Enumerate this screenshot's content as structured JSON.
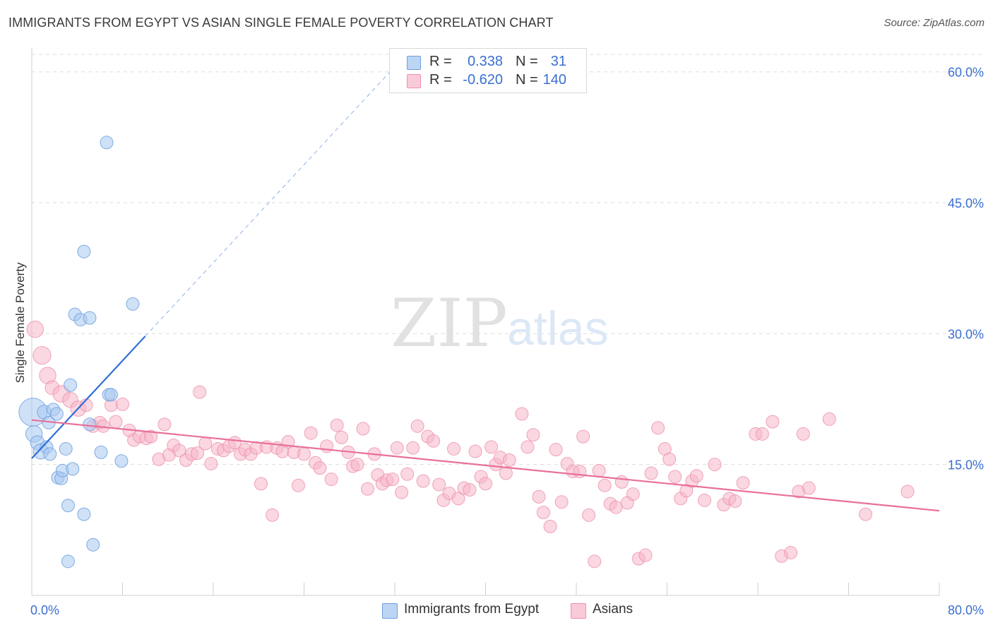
{
  "title": "IMMIGRANTS FROM EGYPT VS ASIAN SINGLE FEMALE POVERTY CORRELATION CHART",
  "source": "Source: ZipAtlas.com",
  "watermark": {
    "part1": "ZIP",
    "part2": "atlas"
  },
  "legend_box": [
    {
      "r_label": "R =",
      "r_value": "0.338",
      "n_label": "N =",
      "n_value": "31"
    },
    {
      "r_label": "R =",
      "r_value": "-0.620",
      "n_label": "N =",
      "n_value": "140"
    }
  ],
  "bottom_legend": [
    "Immigrants from Egypt",
    "Asians"
  ],
  "colors": {
    "egypt_fill": "#a8c8f0",
    "egypt_stroke": "#6f9fde",
    "egypt_line": "#2f6fd6",
    "asian_fill": "#f6b6c8",
    "asian_stroke": "#ee8faa",
    "asian_line": "#e8709a",
    "tick_text": "#3a6fd0",
    "grid": "#dddddd"
  },
  "chart_data": {
    "type": "scatter",
    "title": "IMMIGRANTS FROM EGYPT VS ASIAN SINGLE FEMALE POVERTY CORRELATION CHART",
    "xlabel": "",
    "ylabel": "Single Female Poverty",
    "xlim": [
      0,
      80
    ],
    "ylim": [
      0,
      62
    ],
    "x_tick_labels": [
      "0.0%",
      "80.0%"
    ],
    "y_ticks": [
      15,
      30,
      45,
      60
    ],
    "y_tick_labels": [
      "15.0%",
      "30.0%",
      "45.0%",
      "60.0%"
    ],
    "grid": "horizontal dashed",
    "legend_position": "top-center",
    "series": [
      {
        "name": "Immigrants from Egypt",
        "R": 0.338,
        "N": 31,
        "trend": {
          "x0": 0,
          "y0": 15.7,
          "x1": 10,
          "y1": 29.7,
          "dashed_to_x": 32,
          "dashed_to_y": 60.6
        },
        "points": [
          [
            0.1,
            21.0,
            2.2
          ],
          [
            0.2,
            18.5,
            1.3
          ],
          [
            0.5,
            17.5,
            1.1
          ],
          [
            0.8,
            16.5,
            1.2
          ],
          [
            1.1,
            21.0,
            1.1
          ],
          [
            1.3,
            17.0,
            1.0
          ],
          [
            1.5,
            19.8,
            1.0
          ],
          [
            1.6,
            16.2,
            1.0
          ],
          [
            1.9,
            21.3,
            1.0
          ],
          [
            2.2,
            20.8,
            1.0
          ],
          [
            2.3,
            13.5,
            1.0
          ],
          [
            2.6,
            13.4,
            1.0
          ],
          [
            2.7,
            14.3,
            1.0
          ],
          [
            3.2,
            10.3,
            1.0
          ],
          [
            3.2,
            3.9,
            1.0
          ],
          [
            3.4,
            24.1,
            1.0
          ],
          [
            3.6,
            14.5,
            1.0
          ],
          [
            3.8,
            32.2,
            1.0
          ],
          [
            4.3,
            31.6,
            1.0
          ],
          [
            4.6,
            9.3,
            1.0
          ],
          [
            4.6,
            39.4,
            1.0
          ],
          [
            5.1,
            31.8,
            1.0
          ],
          [
            5.1,
            19.6,
            1.0
          ],
          [
            5.4,
            5.8,
            1.0
          ],
          [
            6.1,
            16.4,
            1.0
          ],
          [
            6.6,
            51.9,
            1.0
          ],
          [
            6.8,
            23.0,
            1.0
          ],
          [
            7.0,
            23.0,
            1.0
          ],
          [
            7.9,
            15.4,
            1.0
          ],
          [
            8.9,
            33.4,
            1.0
          ],
          [
            3.0,
            16.8,
            1.0
          ]
        ]
      },
      {
        "name": "Asians",
        "R": -0.62,
        "N": 140,
        "trend": {
          "x0": 0,
          "y0": 20.1,
          "x1": 80,
          "y1": 9.7
        },
        "points": [
          [
            0.3,
            30.5,
            1.3
          ],
          [
            0.9,
            27.5,
            1.4
          ],
          [
            1.4,
            25.2,
            1.3
          ],
          [
            1.8,
            23.8,
            1.1
          ],
          [
            2.6,
            23.1,
            1.3
          ],
          [
            3.4,
            22.4,
            1.2
          ],
          [
            4.1,
            21.4,
            1.2
          ],
          [
            4.8,
            21.8,
            1.0
          ],
          [
            5.4,
            19.4,
            1.0
          ],
          [
            6.0,
            19.8,
            1.0
          ],
          [
            6.3,
            19.4,
            1.0
          ],
          [
            7.0,
            21.8,
            1.0
          ],
          [
            7.4,
            19.9,
            1.0
          ],
          [
            8.0,
            21.9,
            1.0
          ],
          [
            8.6,
            18.9,
            1.0
          ],
          [
            9.0,
            17.8,
            1.0
          ],
          [
            9.5,
            18.2,
            1.0
          ],
          [
            10.1,
            18.0,
            1.0
          ],
          [
            10.5,
            18.2,
            1.0
          ],
          [
            11.2,
            15.6,
            1.0
          ],
          [
            11.7,
            19.6,
            1.0
          ],
          [
            12.1,
            16.1,
            1.0
          ],
          [
            12.5,
            17.2,
            1.0
          ],
          [
            13.0,
            16.6,
            1.0
          ],
          [
            13.6,
            15.5,
            1.0
          ],
          [
            14.1,
            16.2,
            1.0
          ],
          [
            14.6,
            16.3,
            1.0
          ],
          [
            14.8,
            23.3,
            1.0
          ],
          [
            15.3,
            17.4,
            1.0
          ],
          [
            15.8,
            15.1,
            1.0
          ],
          [
            16.4,
            16.8,
            1.0
          ],
          [
            16.9,
            16.6,
            1.0
          ],
          [
            17.4,
            17.1,
            1.0
          ],
          [
            17.9,
            17.5,
            1.0
          ],
          [
            18.4,
            16.2,
            1.0
          ],
          [
            18.8,
            16.7,
            1.0
          ],
          [
            19.3,
            16.2,
            1.0
          ],
          [
            19.8,
            16.9,
            1.0
          ],
          [
            20.2,
            12.8,
            1.0
          ],
          [
            20.7,
            17.0,
            1.0
          ],
          [
            21.2,
            9.2,
            1.0
          ],
          [
            21.6,
            16.9,
            1.0
          ],
          [
            22.1,
            16.5,
            1.0
          ],
          [
            22.6,
            17.6,
            1.0
          ],
          [
            23.1,
            16.4,
            1.0
          ],
          [
            23.5,
            12.6,
            1.0
          ],
          [
            24.0,
            16.2,
            1.0
          ],
          [
            24.6,
            18.6,
            1.0
          ],
          [
            25.0,
            15.2,
            1.0
          ],
          [
            25.4,
            14.6,
            1.0
          ],
          [
            26.0,
            17.1,
            1.0
          ],
          [
            26.4,
            13.3,
            1.0
          ],
          [
            26.9,
            19.5,
            1.0
          ],
          [
            27.3,
            18.1,
            1.0
          ],
          [
            27.9,
            16.4,
            1.0
          ],
          [
            28.3,
            14.8,
            1.0
          ],
          [
            28.7,
            15.0,
            1.0
          ],
          [
            29.2,
            19.1,
            1.0
          ],
          [
            29.6,
            12.2,
            1.0
          ],
          [
            30.2,
            16.2,
            1.0
          ],
          [
            30.5,
            13.8,
            1.0
          ],
          [
            30.9,
            12.8,
            1.0
          ],
          [
            31.3,
            13.2,
            1.0
          ],
          [
            31.8,
            13.3,
            1.0
          ],
          [
            32.2,
            16.9,
            1.0
          ],
          [
            32.6,
            11.8,
            1.0
          ],
          [
            33.1,
            13.9,
            1.0
          ],
          [
            33.6,
            16.9,
            1.0
          ],
          [
            34.0,
            19.4,
            1.0
          ],
          [
            34.5,
            13.1,
            1.0
          ],
          [
            34.9,
            18.2,
            1.0
          ],
          [
            35.4,
            17.7,
            1.0
          ],
          [
            35.9,
            12.7,
            1.0
          ],
          [
            36.3,
            10.9,
            1.0
          ],
          [
            36.8,
            11.7,
            1.0
          ],
          [
            37.2,
            16.8,
            1.0
          ],
          [
            37.6,
            11.1,
            1.0
          ],
          [
            38.1,
            12.3,
            1.0
          ],
          [
            38.6,
            12.1,
            1.0
          ],
          [
            39.1,
            16.5,
            1.0
          ],
          [
            39.6,
            13.6,
            1.0
          ],
          [
            40.0,
            12.8,
            1.0
          ],
          [
            40.5,
            17.0,
            1.0
          ],
          [
            40.9,
            15.0,
            1.0
          ],
          [
            41.3,
            15.8,
            1.0
          ],
          [
            41.8,
            14.0,
            1.0
          ],
          [
            42.1,
            15.5,
            1.0
          ],
          [
            43.2,
            20.8,
            1.0
          ],
          [
            43.7,
            17.0,
            1.0
          ],
          [
            44.2,
            18.4,
            1.0
          ],
          [
            44.7,
            11.3,
            1.0
          ],
          [
            45.1,
            9.5,
            1.0
          ],
          [
            45.7,
            7.9,
            1.0
          ],
          [
            46.2,
            16.7,
            1.0
          ],
          [
            46.7,
            10.7,
            1.0
          ],
          [
            47.2,
            15.1,
            1.0
          ],
          [
            47.7,
            14.2,
            1.0
          ],
          [
            48.3,
            14.2,
            1.0
          ],
          [
            48.6,
            18.2,
            1.0
          ],
          [
            49.1,
            9.2,
            1.0
          ],
          [
            49.6,
            3.9,
            1.0
          ],
          [
            50.0,
            14.3,
            1.0
          ],
          [
            50.5,
            12.6,
            1.0
          ],
          [
            51.0,
            10.5,
            1.0
          ],
          [
            51.5,
            10.1,
            1.0
          ],
          [
            52.0,
            13.0,
            1.0
          ],
          [
            52.5,
            10.6,
            1.0
          ],
          [
            53.0,
            11.6,
            1.0
          ],
          [
            53.5,
            4.2,
            1.0
          ],
          [
            54.1,
            4.6,
            1.0
          ],
          [
            54.6,
            14.0,
            1.0
          ],
          [
            55.2,
            19.2,
            1.0
          ],
          [
            55.8,
            16.8,
            1.0
          ],
          [
            56.2,
            15.6,
            1.0
          ],
          [
            56.7,
            13.6,
            1.0
          ],
          [
            57.2,
            11.1,
            1.0
          ],
          [
            57.7,
            12.0,
            1.0
          ],
          [
            58.2,
            13.1,
            1.0
          ],
          [
            58.6,
            13.7,
            1.0
          ],
          [
            59.3,
            10.9,
            1.0
          ],
          [
            60.2,
            15.0,
            1.0
          ],
          [
            61.0,
            10.4,
            1.0
          ],
          [
            61.5,
            11.1,
            1.0
          ],
          [
            62.0,
            10.8,
            1.0
          ],
          [
            62.7,
            12.9,
            1.0
          ],
          [
            63.8,
            18.5,
            1.0
          ],
          [
            64.4,
            18.5,
            1.0
          ],
          [
            65.3,
            19.9,
            1.0
          ],
          [
            66.1,
            4.5,
            1.0
          ],
          [
            66.9,
            4.9,
            1.0
          ],
          [
            67.6,
            11.9,
            1.0
          ],
          [
            68.0,
            18.5,
            1.0
          ],
          [
            68.5,
            12.3,
            1.0
          ],
          [
            70.3,
            20.2,
            1.0
          ],
          [
            73.5,
            9.3,
            1.0
          ],
          [
            77.2,
            11.9,
            1.0
          ]
        ]
      }
    ]
  }
}
